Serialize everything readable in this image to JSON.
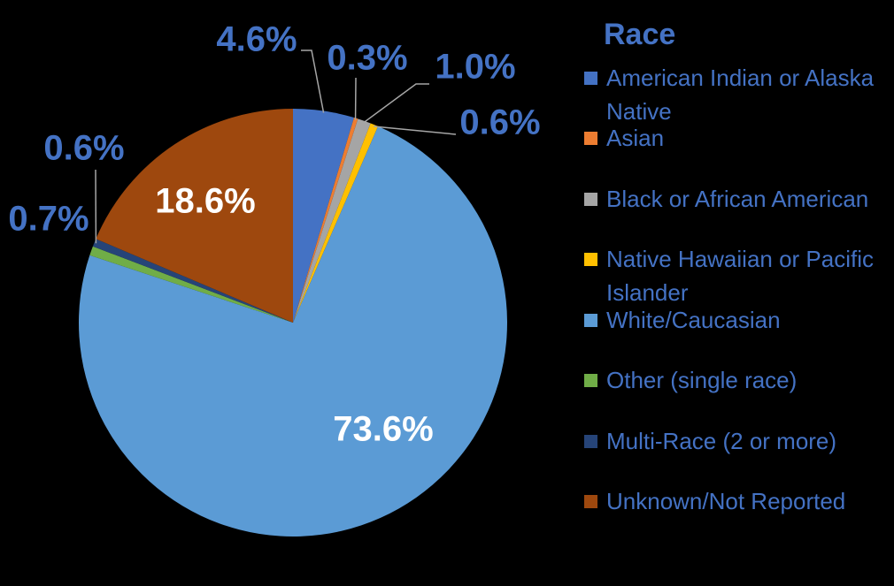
{
  "chart_data": {
    "type": "pie",
    "legend_title": "Race",
    "legend": "right",
    "categories": [
      "American Indian or Alaska Native",
      "Asian",
      "Black or African American",
      "Native Hawaiian or Pacific Islander",
      "White/Caucasian",
      "Other (single race)",
      "Multi-Race (2 or more)",
      "Unknown/Not Reported"
    ],
    "values": [
      4.6,
      0.3,
      1.0,
      0.6,
      73.6,
      0.7,
      0.6,
      18.6
    ],
    "value_labels": [
      "4.6%",
      "0.3%",
      "1.0%",
      "0.6%",
      "73.6%",
      "0.7%",
      "0.6%",
      "18.6%"
    ],
    "colors": [
      "#4472c4",
      "#ed7d31",
      "#a5a5a5",
      "#ffc000",
      "#5b9bd5",
      "#70ad47",
      "#264478",
      "#9e480e"
    ]
  }
}
